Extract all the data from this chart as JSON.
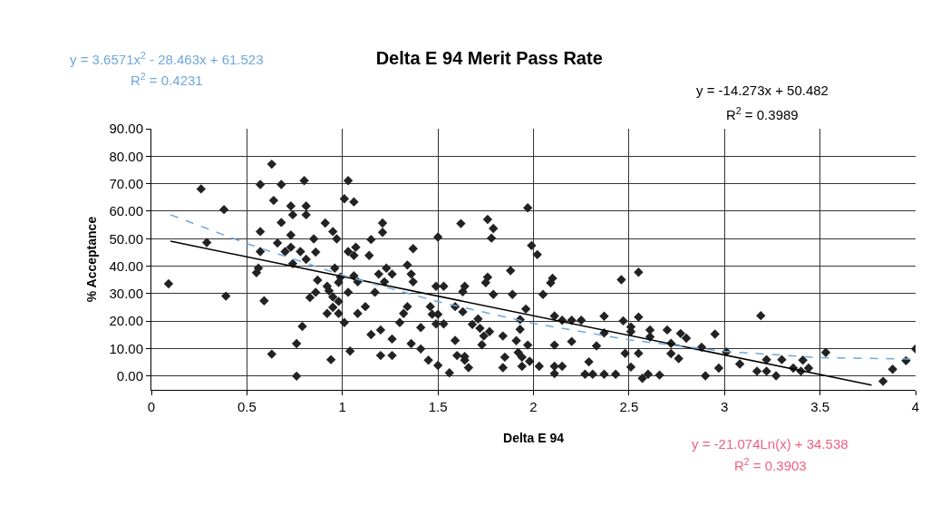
{
  "chart_data": {
    "type": "scatter",
    "title": "Delta E 94 Merit Pass Rate",
    "xlabel": "Delta E 94",
    "ylabel": "% Acceptance",
    "xlim": [
      0,
      4
    ],
    "xticks": [
      0,
      0.5,
      1,
      1.5,
      2,
      2.5,
      3,
      3.5,
      4
    ],
    "ylim": [
      -5,
      90
    ],
    "yticks": [
      {
        "value": 0,
        "label": "0.00"
      },
      {
        "value": 10,
        "label": "10.00"
      },
      {
        "value": 20,
        "label": "20.00"
      },
      {
        "value": 30,
        "label": "30.00"
      },
      {
        "value": 40,
        "label": "40.00"
      },
      {
        "value": 50,
        "label": "50.00"
      },
      {
        "value": 60,
        "label": "60.00"
      },
      {
        "value": 70,
        "label": "70.00"
      },
      {
        "value": 80,
        "label": "80.00"
      },
      {
        "value": 90,
        "label": "90.00"
      }
    ],
    "grid": true,
    "series": [
      {
        "color": "#222222",
        "marker": "diamond",
        "x": [
          0.09,
          0.26,
          0.38,
          0.29,
          0.39,
          0.63,
          0.57,
          0.68,
          0.8,
          1.03,
          0.64,
          0.73,
          0.81,
          0.74,
          0.81,
          1.01,
          1.06,
          0.68,
          0.91,
          0.57,
          0.73,
          0.95,
          1.21,
          1.21,
          0.66,
          0.85,
          0.97,
          1.15,
          0.73,
          0.7,
          0.78,
          0.86,
          0.57,
          0.81,
          1.03,
          1.06,
          1.14,
          1.37,
          1.07,
          0.74,
          0.56,
          0.55,
          0.96,
          0.99,
          1.06,
          1.08,
          1.23,
          1.19,
          1.26,
          1.22,
          1.34,
          1.36,
          1.37,
          0.87,
          0.92,
          0.98,
          0.86,
          0.93,
          1.03,
          0.83,
          0.95,
          0.98,
          1.17,
          0.95,
          1.12,
          0.92,
          0.98,
          1.08,
          1.34,
          1.32,
          1.3,
          1.01,
          0.59,
          0.79,
          1.15,
          1.2,
          1.26,
          1.36,
          0.76,
          1.04,
          0.63,
          1.2,
          1.26,
          0.94,
          0.76,
          1.5,
          1.62,
          1.76,
          1.79,
          1.78,
          1.97,
          1.99,
          2.02,
          1.88,
          1.76,
          1.75,
          2.1,
          2.09,
          1.49,
          1.53,
          1.64,
          1.63,
          1.79,
          1.89,
          2.05,
          2.46,
          2.55,
          1.46,
          1.59,
          1.47,
          1.5,
          1.49,
          1.53,
          1.63,
          1.41,
          1.71,
          1.68,
          1.72,
          1.77,
          1.74,
          1.84,
          1.96,
          1.93,
          1.93,
          1.91,
          1.97,
          2.11,
          2.15,
          2.2,
          2.25,
          2.37,
          2.47,
          2.55,
          2.37,
          2.51,
          2.51,
          2.61,
          2.61,
          2.7,
          2.2,
          2.33,
          2.11,
          1.41,
          1.59,
          1.73,
          1.6,
          1.64,
          1.64,
          1.66,
          1.45,
          1.5,
          1.56,
          1.85,
          1.84,
          1.92,
          1.94,
          1.94,
          1.98,
          2.03,
          2.11,
          2.11,
          2.15,
          2.29,
          2.27,
          2.31,
          2.37,
          2.43,
          2.48,
          2.55,
          2.51,
          2.57,
          2.6,
          2.66,
          2.72,
          2.72,
          2.77,
          2.8,
          2.76,
          2.88,
          2.95,
          3.01,
          2.97,
          2.9,
          3.19,
          3.08,
          3.22,
          3.17,
          3.22,
          3.27,
          3.3,
          3.36,
          3.4,
          3.41,
          3.44,
          3.53,
          3.83,
          3.88,
          3.95,
          4.0
        ],
        "values": [
          33.6,
          68.1,
          60.6,
          48.6,
          29.1,
          77.1,
          69.7,
          69.7,
          71.1,
          71.1,
          63.9,
          61.9,
          61.9,
          58.7,
          58.7,
          64.5,
          63.4,
          55.9,
          55.7,
          52.6,
          51.3,
          52.6,
          55.7,
          52.3,
          48.4,
          49.9,
          49.9,
          49.7,
          46.9,
          45.3,
          45.3,
          45.1,
          45.3,
          42.5,
          45.3,
          43.9,
          43.9,
          46.4,
          46.9,
          40.9,
          39.3,
          37.6,
          39.3,
          36.0,
          36.5,
          34.3,
          39.3,
          37.1,
          37.1,
          34.3,
          40.4,
          37.1,
          34.3,
          34.9,
          32.7,
          34.1,
          30.5,
          31.0,
          30.5,
          28.6,
          28.8,
          27.2,
          30.5,
          25.0,
          25.3,
          22.8,
          22.8,
          22.8,
          25.3,
          22.8,
          19.5,
          19.5,
          27.4,
          18.1,
          15.1,
          16.8,
          13.5,
          11.8,
          11.8,
          9.1,
          8.0,
          7.5,
          7.5,
          6.0,
          0.0,
          50.6,
          55.5,
          57.0,
          53.7,
          50.2,
          61.2,
          47.5,
          44.2,
          38.4,
          36.0,
          34.0,
          35.6,
          33.9,
          32.7,
          32.7,
          32.7,
          30.7,
          29.7,
          29.7,
          29.7,
          35.1,
          37.8,
          25.3,
          25.3,
          22.5,
          22.5,
          19.0,
          19.0,
          23.4,
          17.7,
          20.8,
          18.8,
          17.4,
          16.2,
          14.6,
          14.6,
          24.4,
          20.6,
          17.0,
          12.9,
          11.3,
          21.9,
          20.3,
          20.3,
          20.3,
          21.8,
          20.1,
          21.5,
          15.7,
          17.9,
          16.2,
          16.8,
          14.3,
          16.8,
          12.6,
          11.0,
          11.3,
          9.9,
          13.0,
          11.4,
          7.5,
          7.1,
          5.8,
          3.1,
          5.8,
          3.9,
          1.2,
          6.9,
          3.1,
          8.6,
          6.9,
          3.6,
          5.4,
          3.6,
          3.6,
          0.9,
          3.6,
          5.2,
          0.7,
          0.7,
          0.7,
          0.7,
          8.3,
          8.3,
          3.3,
          -0.8,
          0.7,
          0.4,
          11.9,
          8.2,
          15.5,
          13.8,
          6.4,
          10.5,
          15.3,
          8.8,
          2.9,
          0.1,
          22.0,
          4.4,
          6.0,
          1.8,
          1.8,
          0.1,
          6.0,
          2.9,
          1.8,
          5.8,
          2.9,
          8.6,
          -1.9,
          2.5,
          5.6,
          9.9
        ]
      },
      {
        "type": "line",
        "color": "#000000",
        "line_style": "solid",
        "marker": "none",
        "x": [
          0.1,
          3.77
        ],
        "values": [
          49.1,
          -3.3
        ]
      },
      {
        "type": "line",
        "color": "#6fa8dc",
        "line_style": "dashed",
        "marker": "none",
        "x": [
          0.1,
          0.5,
          1,
          1.5,
          2,
          2.5,
          3,
          3.5,
          4
        ],
        "values": [
          58.7,
          48.2,
          36.7,
          27.1,
          19.2,
          13.2,
          9.0,
          6.7,
          6.2
        ]
      }
    ],
    "annotations": [
      "y = 3.6571x$^{2}$ - 28.463x + 61.523",
      "R$^{2}$ = 0.4231",
      "y = -14.273x + 50.482",
      "R$^{2}$ = 0.3989",
      "y = -21.074Ln(x) + 34.538",
      "R$^{2}$ = 0.3903"
    ]
  }
}
